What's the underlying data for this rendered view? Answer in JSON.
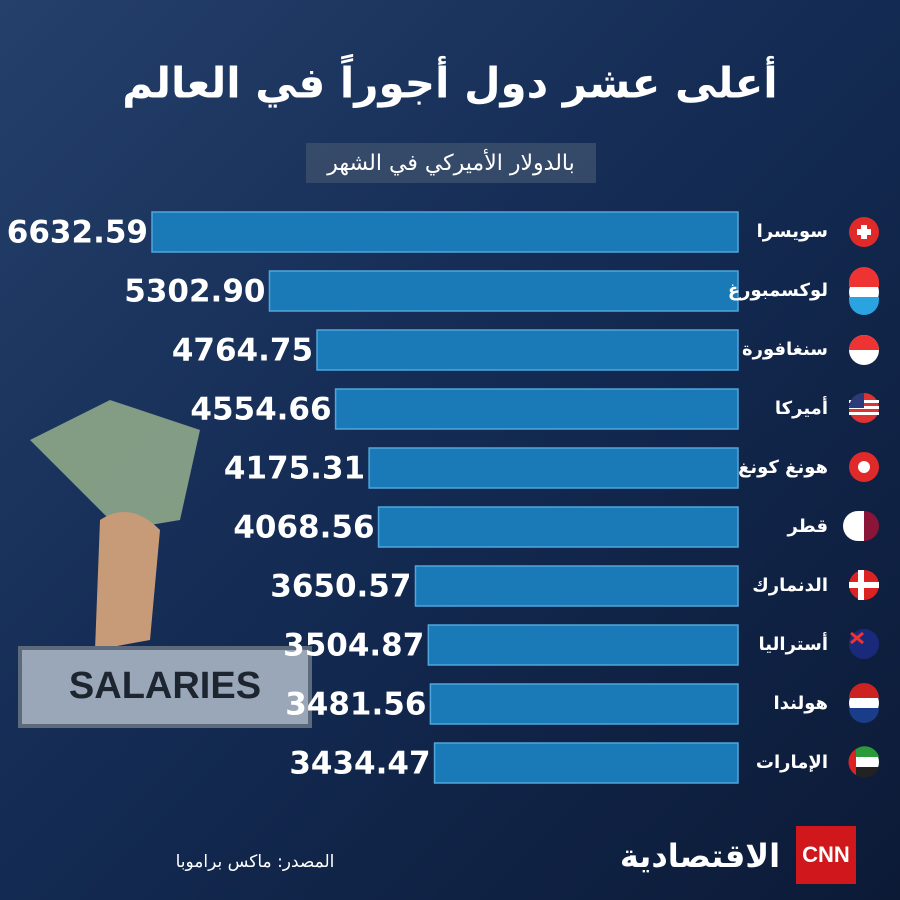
{
  "chart_data": {
    "type": "bar",
    "orientation": "horizontal",
    "title": "أعلى عشر دول أجوراً في العالم",
    "subtitle": "بالدولار الأميركي في الشهر",
    "categories": [
      "سويسرا",
      "لوكسمبورغ",
      "سنغافورة",
      "أميركا",
      "هونغ كونغ",
      "قطر",
      "الدنمارك",
      "أستراليا",
      "هولندا",
      "الإمارات"
    ],
    "values": [
      6632.59,
      5302.9,
      4764.75,
      4554.66,
      4175.31,
      4068.56,
      3650.57,
      3504.87,
      3481.56,
      3434.47
    ],
    "value_labels": [
      "6632.59",
      "5302.90",
      "4764.75",
      "4554.66",
      "4175.31",
      "4068.56",
      "3650.57",
      "3504.87",
      "3481.56",
      "3434.47"
    ],
    "color": "#1a7ab8"
  },
  "source": "المصدر: ماكس براموبا",
  "logos": {
    "cnn": "CNN",
    "brand": "الاقتصادية"
  },
  "background_sign": "SALARIES"
}
